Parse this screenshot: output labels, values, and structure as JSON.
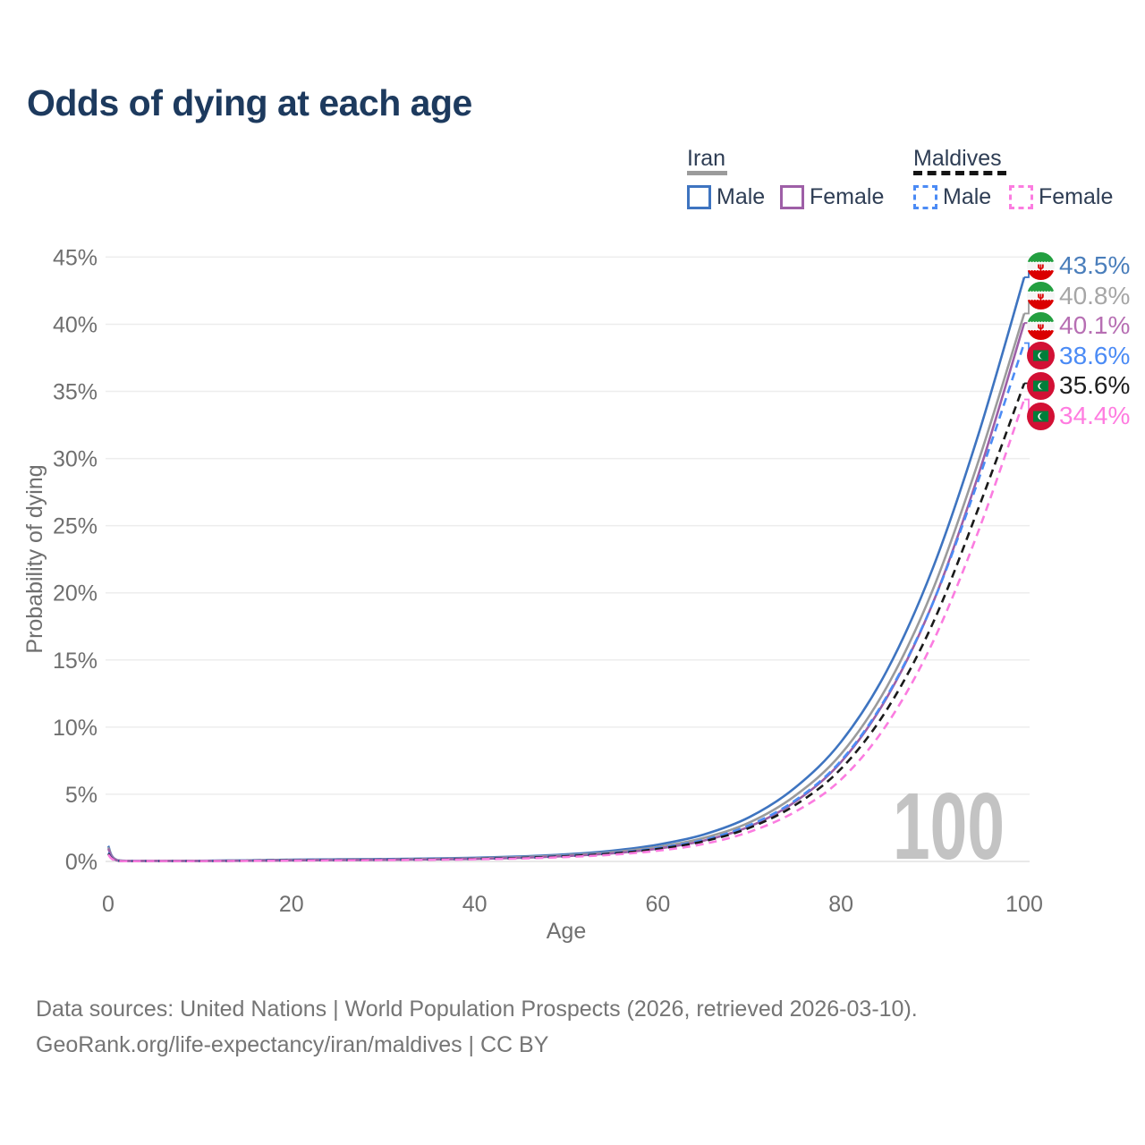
{
  "title": "Odds of dying at each age",
  "legend": {
    "groups": [
      {
        "label": "Iran",
        "line_style": "solid",
        "underline_color": "#9b9b9b",
        "items": [
          {
            "label": "Male",
            "color": "#3e74c0",
            "dashed": false
          },
          {
            "label": "Female",
            "color": "#9e5fa7",
            "dashed": false
          }
        ]
      },
      {
        "label": "Maldives",
        "line_style": "dashed",
        "underline_color": "#141414",
        "items": [
          {
            "label": "Male",
            "color": "#4b8bf5",
            "dashed": true
          },
          {
            "label": "Female",
            "color": "#fb7ce0",
            "dashed": true
          }
        ]
      }
    ]
  },
  "chart_data": {
    "type": "line",
    "title": "Odds of dying at each age",
    "xlabel": "Age",
    "ylabel": "Probability of dying",
    "xlim": [
      0,
      100
    ],
    "ylim": [
      0,
      45
    ],
    "x_ticks": [
      0,
      20,
      40,
      60,
      80,
      100
    ],
    "y_ticks": [
      0,
      5,
      10,
      15,
      20,
      25,
      30,
      35,
      40,
      45
    ],
    "y_tick_suffix": "%",
    "grid": "horizontal",
    "watermark": "100",
    "series": [
      {
        "name": "Iran Male",
        "country": "iran",
        "sex": "male",
        "color": "#3e74c0",
        "dashed": false,
        "points": [
          [
            0,
            1.15
          ],
          [
            1,
            0.09
          ],
          [
            5,
            0.05
          ],
          [
            10,
            0.05
          ],
          [
            15,
            0.08
          ],
          [
            20,
            0.13
          ],
          [
            25,
            0.16
          ],
          [
            30,
            0.18
          ],
          [
            35,
            0.21
          ],
          [
            40,
            0.27
          ],
          [
            45,
            0.37
          ],
          [
            50,
            0.53
          ],
          [
            55,
            0.8
          ],
          [
            60,
            1.25
          ],
          [
            65,
            2.0
          ],
          [
            70,
            3.3
          ],
          [
            75,
            5.5
          ],
          [
            80,
            8.9
          ],
          [
            85,
            14.2
          ],
          [
            90,
            21.8
          ],
          [
            95,
            31.8
          ],
          [
            100,
            43.5
          ]
        ]
      },
      {
        "name": "Iran Both sexes",
        "country": "iran",
        "sex": "both",
        "color": "#9b9b9b",
        "dashed": false,
        "points": [
          [
            0,
            1.05
          ],
          [
            1,
            0.08
          ],
          [
            5,
            0.045
          ],
          [
            10,
            0.04
          ],
          [
            15,
            0.065
          ],
          [
            20,
            0.105
          ],
          [
            25,
            0.13
          ],
          [
            30,
            0.15
          ],
          [
            35,
            0.18
          ],
          [
            40,
            0.23
          ],
          [
            45,
            0.32
          ],
          [
            50,
            0.46
          ],
          [
            55,
            0.69
          ],
          [
            60,
            1.08
          ],
          [
            65,
            1.75
          ],
          [
            70,
            2.9
          ],
          [
            75,
            4.9
          ],
          [
            80,
            8.0
          ],
          [
            85,
            13.0
          ],
          [
            90,
            20.2
          ],
          [
            95,
            29.8
          ],
          [
            100,
            40.8
          ]
        ]
      },
      {
        "name": "Iran Female",
        "country": "iran",
        "sex": "female",
        "color": "#9e5fa7",
        "dashed": false,
        "points": [
          [
            0,
            0.95
          ],
          [
            1,
            0.07
          ],
          [
            5,
            0.04
          ],
          [
            10,
            0.035
          ],
          [
            15,
            0.05
          ],
          [
            20,
            0.08
          ],
          [
            25,
            0.1
          ],
          [
            30,
            0.12
          ],
          [
            35,
            0.15
          ],
          [
            40,
            0.19
          ],
          [
            45,
            0.27
          ],
          [
            50,
            0.4
          ],
          [
            55,
            0.6
          ],
          [
            60,
            0.95
          ],
          [
            65,
            1.55
          ],
          [
            70,
            2.6
          ],
          [
            75,
            4.45
          ],
          [
            80,
            7.4
          ],
          [
            85,
            12.2
          ],
          [
            90,
            19.2
          ],
          [
            95,
            28.8
          ],
          [
            100,
            40.1
          ]
        ]
      },
      {
        "name": "Maldives Male",
        "country": "maldives",
        "sex": "male",
        "color": "#4b8bf5",
        "dashed": true,
        "points": [
          [
            0,
            0.65
          ],
          [
            1,
            0.06
          ],
          [
            5,
            0.035
          ],
          [
            10,
            0.035
          ],
          [
            15,
            0.055
          ],
          [
            20,
            0.09
          ],
          [
            25,
            0.11
          ],
          [
            30,
            0.13
          ],
          [
            35,
            0.16
          ],
          [
            40,
            0.2
          ],
          [
            45,
            0.28
          ],
          [
            50,
            0.42
          ],
          [
            55,
            0.63
          ],
          [
            60,
            1.0
          ],
          [
            65,
            1.6
          ],
          [
            70,
            2.7
          ],
          [
            75,
            4.55
          ],
          [
            80,
            7.5
          ],
          [
            85,
            12.3
          ],
          [
            90,
            19.2
          ],
          [
            95,
            28.4
          ],
          [
            100,
            38.6
          ]
        ]
      },
      {
        "name": "Maldives Both sexes",
        "country": "maldives",
        "sex": "both",
        "color": "#1a1a1a",
        "dashed": true,
        "points": [
          [
            0,
            0.58
          ],
          [
            1,
            0.05
          ],
          [
            5,
            0.03
          ],
          [
            10,
            0.03
          ],
          [
            15,
            0.05
          ],
          [
            20,
            0.08
          ],
          [
            25,
            0.1
          ],
          [
            30,
            0.12
          ],
          [
            35,
            0.145
          ],
          [
            40,
            0.19
          ],
          [
            45,
            0.26
          ],
          [
            50,
            0.39
          ],
          [
            55,
            0.59
          ],
          [
            60,
            0.93
          ],
          [
            65,
            1.5
          ],
          [
            70,
            2.5
          ],
          [
            75,
            4.2
          ],
          [
            80,
            6.9
          ],
          [
            85,
            11.3
          ],
          [
            90,
            17.7
          ],
          [
            95,
            26.3
          ],
          [
            100,
            35.6
          ]
        ]
      },
      {
        "name": "Maldives Female",
        "country": "maldives",
        "sex": "female",
        "color": "#fb7ce0",
        "dashed": true,
        "points": [
          [
            0,
            0.5
          ],
          [
            1,
            0.045
          ],
          [
            5,
            0.028
          ],
          [
            10,
            0.025
          ],
          [
            15,
            0.04
          ],
          [
            20,
            0.06
          ],
          [
            25,
            0.08
          ],
          [
            30,
            0.1
          ],
          [
            35,
            0.12
          ],
          [
            40,
            0.16
          ],
          [
            45,
            0.22
          ],
          [
            50,
            0.33
          ],
          [
            55,
            0.5
          ],
          [
            60,
            0.8
          ],
          [
            65,
            1.3
          ],
          [
            70,
            2.2
          ],
          [
            75,
            3.7
          ],
          [
            80,
            6.1
          ],
          [
            85,
            10.2
          ],
          [
            90,
            16.3
          ],
          [
            95,
            24.6
          ],
          [
            100,
            34.4
          ]
        ]
      }
    ],
    "end_labels": [
      {
        "label": "43.5%",
        "color": "#4a7ebb",
        "flag": "iran",
        "series": "Iran Male"
      },
      {
        "label": "40.8%",
        "color": "#a6a6a6",
        "flag": "iran",
        "series": "Iran Both sexes"
      },
      {
        "label": "40.1%",
        "color": "#b76fb3",
        "flag": "iran",
        "series": "Iran Female"
      },
      {
        "label": "38.6%",
        "color": "#4b8bf5",
        "flag": "maldives",
        "series": "Maldives Male"
      },
      {
        "label": "35.6%",
        "color": "#1f1f1f",
        "flag": "maldives",
        "series": "Maldives Both sexes"
      },
      {
        "label": "34.4%",
        "color": "#ff7ce0",
        "flag": "maldives",
        "series": "Maldives Female"
      }
    ]
  },
  "footer": {
    "line1": "Data sources: United Nations | World Population Prospects (2026, retrieved 2026-03-10).",
    "line2": "GeoRank.org/life-expectancy/iran/maldives | CC BY"
  }
}
